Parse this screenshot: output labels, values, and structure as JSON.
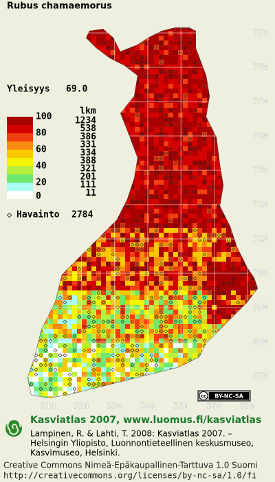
{
  "title": "Rubus chamaemorus",
  "frequency_label": "Yleisyys",
  "frequency": "69.0",
  "legend": {
    "scale_labels": [
      100,
      80,
      60,
      40,
      20,
      0
    ],
    "count_header": "lkm",
    "counts": [
      1234,
      538,
      386,
      331,
      334,
      388,
      321,
      201,
      111,
      11
    ],
    "colors": [
      "#a80000",
      "#d40000",
      "#f04010",
      "#f88c10",
      "#f8c800",
      "#f4f400",
      "#b8f040",
      "#70e870",
      "#a8fff0",
      "#ffffff"
    ]
  },
  "observations_label": "Havainto",
  "observations": 2784,
  "map": {
    "yticks": [
      770,
      760,
      750,
      740,
      730,
      720,
      710,
      700,
      690,
      680,
      670
    ],
    "xticks": [
      310,
      320,
      330,
      340,
      350,
      360,
      370
    ]
  },
  "badge": {
    "cc": "cc",
    "license": "BY-NC-SA"
  },
  "footer": {
    "heading": "Kasviatlas 2007, www.luomus.fi/kasviatlas",
    "citation": [
      "Lampinen, R. & Lahti, T. 2008: Kasviatlas 2007. –",
      "Helsingin Yliopisto, Luonnontieteellinen keskusmuseo,",
      "Kasvimuseo, Helsinki."
    ],
    "license": [
      "Creative Commons Nimeä-Epäkaupallinen-Tarttuva 1.0 Suomi",
      "http://creativecommons.org/licenses/by-nc-sa/1.0/fi"
    ]
  }
}
